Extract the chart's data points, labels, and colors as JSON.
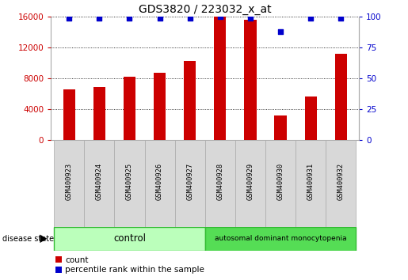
{
  "title": "GDS3820 / 223032_x_at",
  "samples": [
    "GSM400923",
    "GSM400924",
    "GSM400925",
    "GSM400926",
    "GSM400927",
    "GSM400928",
    "GSM400929",
    "GSM400930",
    "GSM400931",
    "GSM400932"
  ],
  "counts": [
    6600,
    6900,
    8200,
    8700,
    10300,
    16000,
    15600,
    3200,
    5600,
    11200
  ],
  "percentiles": [
    99,
    99,
    99,
    99,
    99,
    100,
    99,
    88,
    99,
    99
  ],
  "bar_color": "#cc0000",
  "dot_color": "#0000cc",
  "ylim_left": [
    0,
    16000
  ],
  "ylim_right": [
    0,
    100
  ],
  "yticks_left": [
    0,
    4000,
    8000,
    12000,
    16000
  ],
  "yticks_right": [
    0,
    25,
    50,
    75,
    100
  ],
  "control_label": "control",
  "disease_label": "autosomal dominant monocytopenia",
  "disease_state_label": "disease state",
  "legend_count": "count",
  "legend_percentile": "percentile rank within the sample",
  "control_bg": "#bbffbb",
  "disease_bg": "#55dd55",
  "xticklabel_bg": "#d8d8d8",
  "xticklabel_edge": "#aaaaaa",
  "bar_width": 0.4
}
